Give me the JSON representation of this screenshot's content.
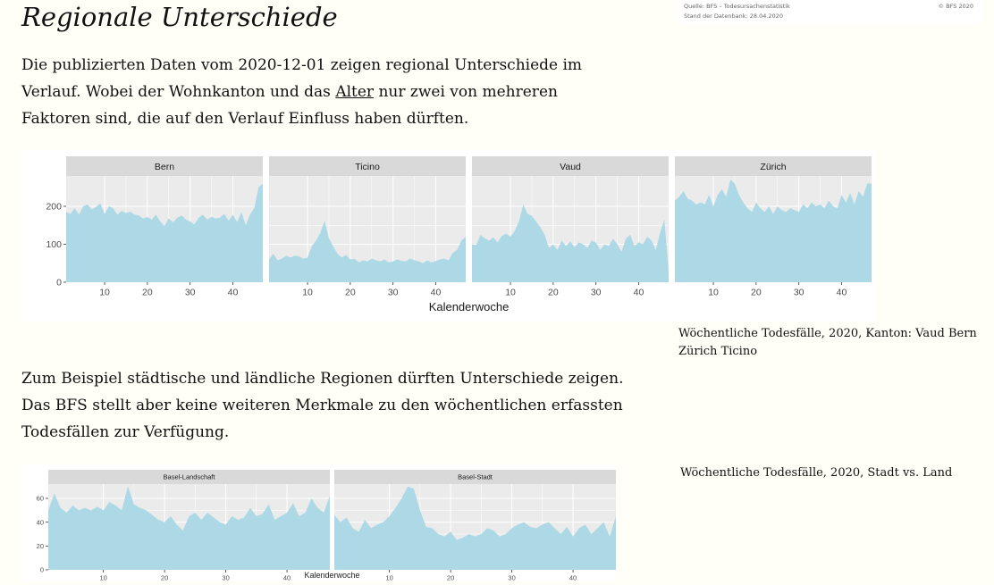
{
  "page": {
    "title": "Regionale Unterschiede",
    "paragraph1": {
      "before": "Die publizierten Daten vom 2020-12-01 zeigen regional Unterschiede im Verlauf. Wobei der Wohnkanton und das ",
      "link": "Alter",
      "after": " nur zwei von mehreren Faktoren sind, die auf den Verlauf Einfluss haben dürften."
    },
    "paragraph2": "Zum Beispiel städtische und ländliche Regionen dürften Unterschiede zeigen. Das BFS stellt aber keine weiteren Merkmale zu den wöchentlichen erfassten Todesfällen zur Verfügung.",
    "source": {
      "line1": "Quelle: BFS – Todesursachenstatistik",
      "line2": "Stand der Datenbank: 28.04.2020",
      "copyright": "© BFS 2020"
    },
    "caption1": "Wöchentliche Todesfälle, 2020, Kanton: Vaud Bern Zürich Ticino",
    "caption2": "Wöchentliche Todesfälle, 2020, Stadt vs. Land"
  },
  "colors": {
    "area_fill": "#add8e6",
    "panel_bg": "#ebebeb",
    "strip_bg": "#d9d9d9",
    "grid": "#ffffff"
  },
  "chart_data": [
    {
      "type": "area",
      "facets": [
        "Bern",
        "Ticino",
        "Vaud",
        "Zürich"
      ],
      "xlabel": "Kalenderwoche",
      "ylabel": "",
      "xlim": [
        1,
        47
      ],
      "ylim": [
        0,
        280
      ],
      "xticks": [
        10,
        20,
        30,
        40
      ],
      "yticks": [
        0,
        100,
        200
      ],
      "grid": true,
      "x": [
        1,
        2,
        3,
        4,
        5,
        6,
        7,
        8,
        9,
        10,
        11,
        12,
        13,
        14,
        15,
        16,
        17,
        18,
        19,
        20,
        21,
        22,
        23,
        24,
        25,
        26,
        27,
        28,
        29,
        30,
        31,
        32,
        33,
        34,
        35,
        36,
        37,
        38,
        39,
        40,
        41,
        42,
        43,
        44,
        45,
        46,
        47
      ],
      "series": [
        {
          "name": "Bern",
          "values": [
            185,
            180,
            195,
            178,
            200,
            205,
            192,
            198,
            208,
            180,
            200,
            195,
            178,
            188,
            182,
            186,
            178,
            176,
            168,
            172,
            165,
            178,
            160,
            148,
            168,
            158,
            170,
            176,
            165,
            160,
            152,
            170,
            178,
            165,
            172,
            168,
            170,
            180,
            162,
            178,
            158,
            185,
            150,
            178,
            195,
            250,
            260
          ]
        },
        {
          "name": "Ticino",
          "values": [
            60,
            75,
            58,
            62,
            70,
            65,
            70,
            68,
            62,
            65,
            95,
            110,
            130,
            162,
            115,
            95,
            75,
            65,
            72,
            60,
            62,
            52,
            58,
            55,
            62,
            58,
            55,
            60,
            52,
            55,
            60,
            56,
            55,
            62,
            58,
            55,
            50,
            58,
            52,
            56,
            60,
            62,
            58,
            78,
            85,
            110,
            120
          ]
        },
        {
          "name": "Vaud",
          "values": [
            100,
            98,
            125,
            115,
            110,
            118,
            105,
            122,
            128,
            120,
            135,
            160,
            205,
            180,
            175,
            160,
            145,
            125,
            90,
            100,
            85,
            110,
            95,
            108,
            92,
            105,
            100,
            90,
            110,
            105,
            85,
            100,
            95,
            115,
            100,
            80,
            115,
            125,
            95,
            105,
            100,
            120,
            110,
            85,
            130,
            165,
            30
          ]
        },
        {
          "name": "Zürich",
          "values": [
            215,
            225,
            240,
            220,
            215,
            205,
            210,
            205,
            230,
            200,
            230,
            245,
            225,
            270,
            260,
            230,
            210,
            195,
            185,
            210,
            195,
            185,
            200,
            180,
            200,
            190,
            185,
            195,
            190,
            185,
            205,
            195,
            210,
            200,
            205,
            195,
            215,
            200,
            195,
            230,
            210,
            235,
            205,
            240,
            225,
            260,
            260
          ]
        }
      ]
    },
    {
      "type": "area",
      "facets": [
        "Basel-Landschaft",
        "Basel-Stadt"
      ],
      "xlabel": "Kalenderwoche",
      "ylabel": "",
      "xlim": [
        1,
        47
      ],
      "ylim": [
        0,
        72
      ],
      "xticks": [
        10,
        20,
        30,
        40
      ],
      "yticks": [
        0,
        20,
        40,
        60
      ],
      "grid": true,
      "x": [
        1,
        2,
        3,
        4,
        5,
        6,
        7,
        8,
        9,
        10,
        11,
        12,
        13,
        14,
        15,
        16,
        17,
        18,
        19,
        20,
        21,
        22,
        23,
        24,
        25,
        26,
        27,
        28,
        29,
        30,
        31,
        32,
        33,
        34,
        35,
        36,
        37,
        38,
        39,
        40,
        41,
        42,
        43,
        44,
        45,
        46,
        47
      ],
      "series": [
        {
          "name": "Basel-Landschaft",
          "values": [
            50,
            64,
            52,
            48,
            54,
            50,
            52,
            50,
            53,
            50,
            57,
            54,
            50,
            70,
            55,
            52,
            50,
            46,
            42,
            40,
            45,
            38,
            33,
            45,
            48,
            42,
            48,
            44,
            40,
            38,
            45,
            42,
            44,
            52,
            45,
            47,
            55,
            42,
            45,
            48,
            56,
            45,
            48,
            60,
            52,
            48,
            62
          ]
        },
        {
          "name": "Basel-Stadt",
          "values": [
            46,
            40,
            44,
            35,
            32,
            42,
            35,
            38,
            40,
            45,
            52,
            60,
            70,
            68,
            50,
            36,
            35,
            30,
            28,
            32,
            25,
            27,
            30,
            28,
            30,
            35,
            33,
            28,
            30,
            35,
            38,
            40,
            36,
            35,
            38,
            40,
            35,
            30,
            36,
            28,
            35,
            38,
            30,
            35,
            40,
            28,
            45
          ]
        }
      ]
    }
  ]
}
